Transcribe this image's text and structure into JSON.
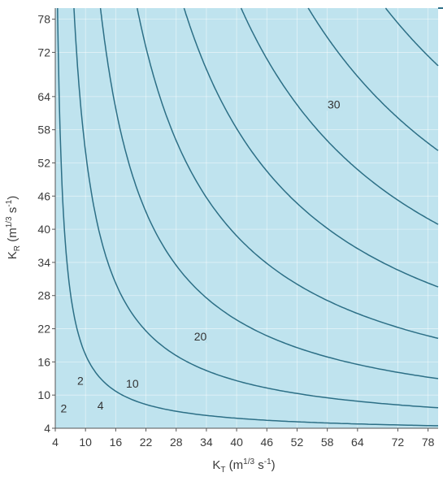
{
  "chart_data": {
    "type": "contour",
    "xlabel": {
      "main": "K",
      "sub": "T",
      "units": "(m",
      "exp1": "1/3",
      "mid": " s",
      "exp2": "-1",
      "close": ")"
    },
    "ylabel": {
      "main": "K",
      "sub": "R",
      "units": "(m",
      "exp1": "1/3",
      "mid": " s",
      "exp2": "-1",
      "close": ")"
    },
    "xlim": [
      4,
      80
    ],
    "ylim": [
      4,
      80
    ],
    "x_ticks": [
      "4",
      "10",
      "16",
      "22",
      "28",
      "34",
      "40",
      "46",
      "52",
      "58",
      "64",
      "72",
      "78"
    ],
    "y_ticks": [
      "4",
      "10",
      "16",
      "22",
      "28",
      "34",
      "40",
      "46",
      "52",
      "58",
      "64",
      "72",
      "78"
    ],
    "grid": true,
    "fill_color": "#bfe3ee",
    "line_color": "#2c6f86",
    "contour_levels": [
      2,
      4,
      6,
      8,
      10,
      12,
      14,
      16,
      18,
      20,
      22,
      24,
      26,
      28,
      30,
      32
    ],
    "contour_labels": [
      {
        "text": "2",
        "x": 6.5,
        "y": 7.0
      },
      {
        "text": "2",
        "x": 9.8,
        "y": 12.0
      },
      {
        "text": "4",
        "x": 13.8,
        "y": 7.5
      },
      {
        "text": "10",
        "x": 19.5,
        "y": 11.5
      },
      {
        "text": "20",
        "x": 33.0,
        "y": 20.0
      },
      {
        "text": "30",
        "x": 59.5,
        "y": 62.0
      }
    ]
  }
}
